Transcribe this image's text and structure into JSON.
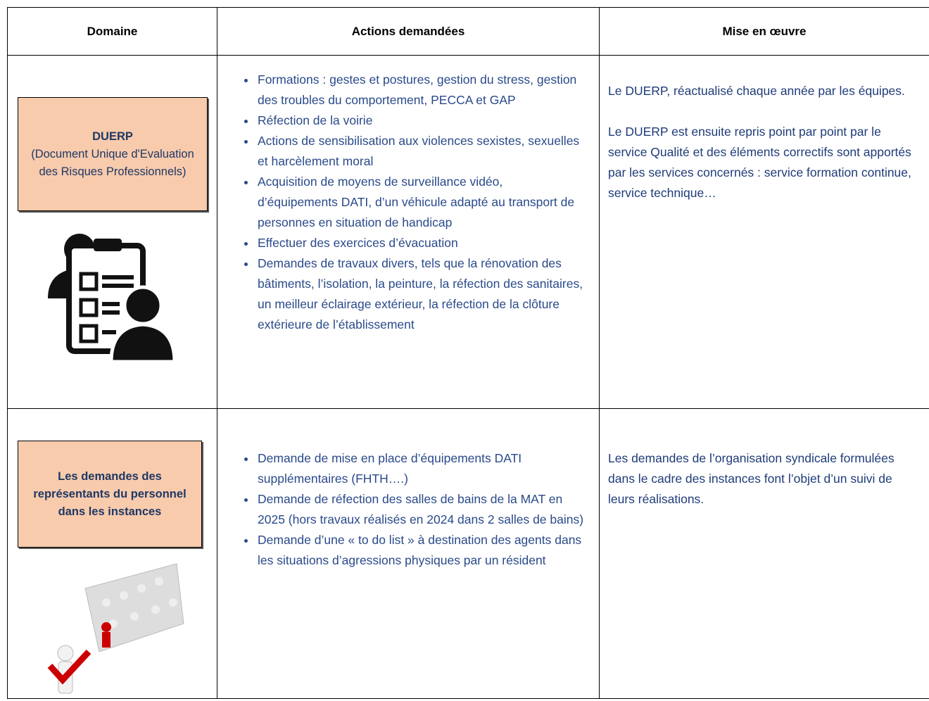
{
  "table": {
    "headers": [
      "Domaine",
      "Actions demandées",
      "Mise en œuvre"
    ],
    "rows": [
      {
        "domain": {
          "title": "DUERP",
          "subtitle": "(Document Unique d'Evaluation des Risques Professionnels)"
        },
        "actions": [
          "Formations : gestes et postures, gestion du stress, gestion des troubles du comportement, PECCA et GAP",
          "Réfection de la voirie",
          "Actions de sensibilisation aux violences sexistes, sexuelles et harcèlement moral",
          "Acquisition de moyens de surveillance vidéo, d’équipements DATI, d’un véhicule adapté au transport de personnes en situation de handicap",
          "Effectuer des exercices d’évacuation",
          "Demandes de travaux divers, tels que la rénovation des bâtiments, l’isolation, la peinture, la réfection des sanitaires, un meilleur éclairage extérieur, la réfection de la clôture extérieure de l’établissement"
        ],
        "implementation": [
          "Le DUERP, réactualisé chaque année par les équipes.",
          "Le DUERP est ensuite repris point par point par le service Qualité et des éléments correctifs sont apportés par les services concernés : service formation continue, service technique…"
        ]
      },
      {
        "domain": {
          "title": "Les demandes des représentants du personnel dans les instances"
        },
        "actions": [
          "Demande de mise en place d’équipements DATI supplémentaires (FHTH….)",
          "Demande de réfection des salles de bains de la MAT en 2025 (hors travaux réalisés en 2024 dans 2 salles de bains)",
          "Demande d’une « to do list » à destination des agents dans les situations d’agressions physiques par un résident"
        ],
        "implementation": [
          "Les demandes de l’organisation syndicale formulées dans le cadre des instances font l’objet d’un suivi de leurs réalisations."
        ]
      }
    ]
  }
}
